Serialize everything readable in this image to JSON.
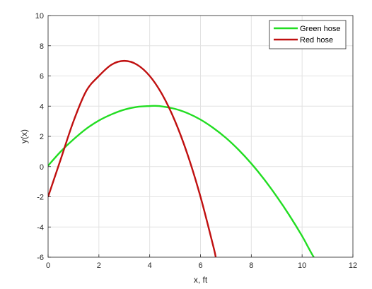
{
  "chart_data": {
    "type": "line",
    "xlabel": "x, ft",
    "ylabel": "y(x)",
    "xlim": [
      0,
      12
    ],
    "ylim": [
      -6,
      10
    ],
    "xticks": [
      0,
      2,
      4,
      6,
      8,
      10,
      12
    ],
    "yticks": [
      -6,
      -4,
      -2,
      0,
      2,
      4,
      6,
      8,
      10
    ],
    "grid": true,
    "legend_position": "top-right",
    "series": [
      {
        "name": "Green hose",
        "color": "#22dd22",
        "x": [
          0,
          0.5,
          1,
          1.5,
          2,
          2.5,
          3,
          3.5,
          4,
          4.2,
          4.5,
          5,
          5.5,
          6,
          6.5,
          7,
          7.5,
          8,
          8.5,
          9,
          9.5,
          10,
          10.5,
          10.65
        ],
        "y": [
          0.06,
          1.0,
          1.8,
          2.5,
          3.05,
          3.46,
          3.77,
          3.95,
          4.01,
          4.02,
          3.98,
          3.82,
          3.53,
          3.11,
          2.56,
          1.9,
          1.11,
          0.2,
          -0.83,
          -1.98,
          -3.23,
          -4.6,
          -6.1,
          -6.05
        ]
      },
      {
        "name": "Red hose",
        "color": "#c01010",
        "x": [
          0,
          0.5,
          1,
          1.5,
          2,
          2.5,
          3,
          3.5,
          4,
          4.5,
          5,
          5.5,
          6,
          6.5,
          6.6
        ],
        "y": [
          -2.0,
          0.5,
          3.0,
          5.0,
          6.0,
          6.75,
          7.0,
          6.75,
          6.0,
          4.75,
          3.0,
          0.75,
          -2.0,
          -5.25,
          -6.0
        ]
      }
    ]
  }
}
